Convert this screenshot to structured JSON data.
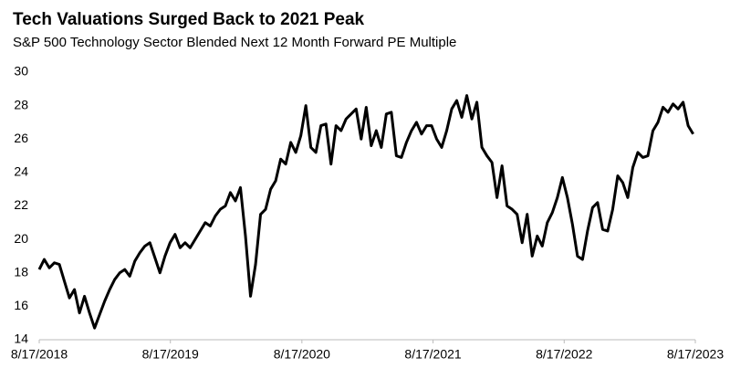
{
  "chart_data": {
    "type": "line",
    "title": "Tech Valuations Surged Back to 2021 Peak",
    "subtitle": "S&P 500 Technology Sector Blended Next 12 Month Forward PE Multiple",
    "color": "#000000",
    "grid": false,
    "x": [
      "2018-08-17",
      "2018-08-31",
      "2018-09-14",
      "2018-09-28",
      "2018-10-12",
      "2018-10-26",
      "2018-11-09",
      "2018-11-23",
      "2018-12-07",
      "2018-12-21",
      "2019-01-04",
      "2019-01-18",
      "2019-02-01",
      "2019-02-15",
      "2019-03-01",
      "2019-03-15",
      "2019-03-29",
      "2019-04-12",
      "2019-04-26",
      "2019-05-10",
      "2019-05-24",
      "2019-06-07",
      "2019-06-21",
      "2019-07-05",
      "2019-07-19",
      "2019-08-02",
      "2019-08-16",
      "2019-08-30",
      "2019-09-13",
      "2019-09-27",
      "2019-10-11",
      "2019-10-25",
      "2019-11-08",
      "2019-11-22",
      "2019-12-06",
      "2019-12-20",
      "2020-01-03",
      "2020-01-17",
      "2020-01-31",
      "2020-02-14",
      "2020-02-28",
      "2020-03-13",
      "2020-03-27",
      "2020-04-10",
      "2020-04-24",
      "2020-05-08",
      "2020-05-22",
      "2020-06-05",
      "2020-06-19",
      "2020-07-03",
      "2020-07-17",
      "2020-07-31",
      "2020-08-14",
      "2020-08-28",
      "2020-09-11",
      "2020-09-25",
      "2020-10-09",
      "2020-10-23",
      "2020-11-06",
      "2020-11-20",
      "2020-12-04",
      "2020-12-18",
      "2021-01-01",
      "2021-01-15",
      "2021-01-29",
      "2021-02-12",
      "2021-02-26",
      "2021-03-12",
      "2021-03-26",
      "2021-04-09",
      "2021-04-23",
      "2021-05-07",
      "2021-05-21",
      "2021-06-04",
      "2021-06-18",
      "2021-07-02",
      "2021-07-16",
      "2021-07-30",
      "2021-08-13",
      "2021-08-27",
      "2021-09-10",
      "2021-09-24",
      "2021-10-08",
      "2021-10-22",
      "2021-11-05",
      "2021-11-19",
      "2021-12-03",
      "2021-12-17",
      "2021-12-31",
      "2022-01-14",
      "2022-01-28",
      "2022-02-11",
      "2022-02-25",
      "2022-03-11",
      "2022-03-25",
      "2022-04-08",
      "2022-04-22",
      "2022-05-06",
      "2022-05-20",
      "2022-06-03",
      "2022-06-17",
      "2022-07-01",
      "2022-07-15",
      "2022-07-29",
      "2022-08-12",
      "2022-08-26",
      "2022-09-09",
      "2022-09-23",
      "2022-10-07",
      "2022-10-21",
      "2022-11-04",
      "2022-11-18",
      "2022-12-02",
      "2022-12-16",
      "2022-12-30",
      "2023-01-13",
      "2023-01-27",
      "2023-02-10",
      "2023-02-24",
      "2023-03-10",
      "2023-03-24",
      "2023-04-07",
      "2023-04-21",
      "2023-05-05",
      "2023-05-19",
      "2023-06-02",
      "2023-06-16",
      "2023-06-30",
      "2023-07-14",
      "2023-07-28",
      "2023-08-11"
    ],
    "values": [
      18.2,
      18.8,
      18.3,
      18.6,
      18.5,
      17.5,
      16.5,
      17.0,
      15.6,
      16.6,
      15.6,
      14.7,
      15.5,
      16.3,
      17.0,
      17.6,
      18.0,
      18.2,
      17.8,
      18.7,
      19.2,
      19.6,
      19.8,
      18.9,
      18.0,
      19.0,
      19.8,
      20.3,
      19.5,
      19.8,
      19.5,
      20.0,
      20.5,
      21.0,
      20.8,
      21.4,
      21.8,
      22.0,
      22.8,
      22.3,
      23.1,
      20.2,
      16.6,
      18.5,
      21.5,
      21.8,
      23.0,
      23.5,
      24.8,
      24.5,
      25.8,
      25.2,
      26.2,
      28.0,
      25.5,
      25.2,
      26.8,
      26.9,
      24.5,
      26.8,
      26.5,
      27.2,
      27.5,
      27.8,
      26.0,
      27.9,
      25.6,
      26.5,
      25.5,
      27.5,
      27.6,
      25.0,
      24.9,
      25.8,
      26.5,
      27.0,
      26.3,
      26.8,
      26.8,
      26.0,
      25.5,
      26.5,
      27.8,
      28.3,
      27.3,
      28.6,
      27.2,
      28.2,
      25.5,
      25.0,
      24.6,
      22.5,
      24.4,
      22.0,
      21.8,
      21.5,
      19.8,
      21.5,
      19.0,
      20.2,
      19.6,
      21.0,
      21.6,
      22.5,
      23.7,
      22.5,
      20.9,
      19.0,
      18.8,
      20.5,
      21.9,
      22.2,
      20.6,
      20.5,
      21.8,
      23.8,
      23.4,
      22.5,
      24.3,
      25.2,
      24.9,
      25.0,
      26.5,
      27.0,
      27.9,
      27.6,
      28.1,
      27.8,
      28.2,
      26.8,
      26.3
    ],
    "xlim": [
      "2018-08-17",
      "2023-08-17"
    ],
    "xticks": [
      {
        "value": "2018-08-17",
        "label": "8/17/2018"
      },
      {
        "value": "2019-08-17",
        "label": "8/17/2019"
      },
      {
        "value": "2020-08-17",
        "label": "8/17/2020"
      },
      {
        "value": "2021-08-17",
        "label": "8/17/2021"
      },
      {
        "value": "2022-08-17",
        "label": "8/17/2022"
      },
      {
        "value": "2023-08-17",
        "label": "8/17/2023"
      }
    ],
    "ylim": [
      14,
      30
    ],
    "yticks": [
      14,
      16,
      18,
      20,
      22,
      24,
      26,
      28,
      30
    ]
  }
}
